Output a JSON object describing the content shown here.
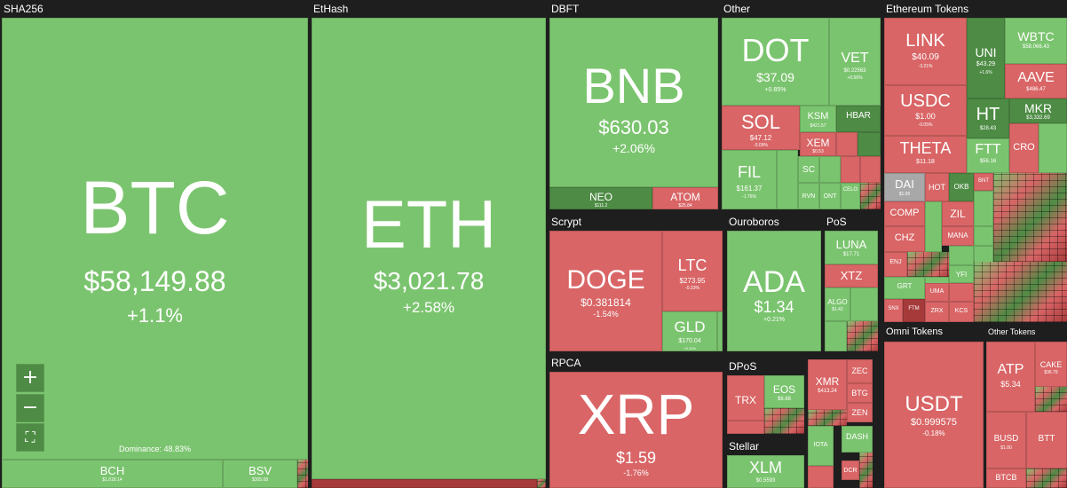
{
  "sectors": {
    "sha256": "SHA256",
    "ethash": "EtHash",
    "dbft": "DBFT",
    "other": "Other",
    "eth_tokens": "Ethereum Tokens",
    "scrypt": "Scrypt",
    "ouroboros": "Ouroboros",
    "pos": "PoS",
    "rpca": "RPCA",
    "dpos": "DPoS",
    "stellar": "Stellar",
    "omni": "Omni Tokens",
    "other_tokens": "Other Tokens"
  },
  "coins": {
    "btc": {
      "symbol": "BTC",
      "price": "$58,149.88",
      "change": "+1.1%"
    },
    "eth": {
      "symbol": "ETH",
      "price": "$3,021.78",
      "change": "+2.58%"
    },
    "bnb": {
      "symbol": "BNB",
      "price": "$630.03",
      "change": "+2.06%"
    },
    "dot": {
      "symbol": "DOT",
      "price": "$37.09",
      "change": "+0.85%"
    },
    "vet": {
      "symbol": "VET",
      "price": "$0.22563",
      "change": "+0.56%"
    },
    "sol": {
      "symbol": "SOL",
      "price": "$47.12",
      "change": "-0.09%"
    },
    "fil": {
      "symbol": "FIL",
      "price": "$161.37",
      "change": "-1.76%"
    },
    "ksm": {
      "symbol": "KSM",
      "price": "$421.57"
    },
    "hbar": {
      "symbol": "HBAR"
    },
    "xem": {
      "symbol": "XEM",
      "price": "$0.53"
    },
    "sc": {
      "symbol": "SC"
    },
    "rvn": {
      "symbol": "RVN"
    },
    "ont": {
      "symbol": "ONT"
    },
    "celo": {
      "symbol": "CELO"
    },
    "neo": {
      "symbol": "NEO",
      "price": "$111.2"
    },
    "atom": {
      "symbol": "ATOM",
      "price": "$25.84"
    },
    "doge": {
      "symbol": "DOGE",
      "price": "$0.381814",
      "change": "-1.54%"
    },
    "ltc": {
      "symbol": "LTC",
      "price": "$273.95",
      "change": "-0.33%"
    },
    "gld": {
      "symbol": "GLD",
      "price": "$170.04",
      "change": "+0.11%"
    },
    "ada": {
      "symbol": "ADA",
      "price": "$1.34",
      "change": "+0.21%"
    },
    "luna": {
      "symbol": "LUNA",
      "price": "$17.71"
    },
    "xtz": {
      "symbol": "XTZ"
    },
    "algo": {
      "symbol": "ALGO",
      "price": "$1.42"
    },
    "xrp": {
      "symbol": "XRP",
      "price": "$1.59",
      "change": "-1.76%"
    },
    "trx": {
      "symbol": "TRX"
    },
    "eos": {
      "symbol": "EOS",
      "price": "$6.68"
    },
    "xmr": {
      "symbol": "XMR",
      "price": "$413.24"
    },
    "zec": {
      "symbol": "ZEC"
    },
    "btg": {
      "symbol": "BTG"
    },
    "zen": {
      "symbol": "ZEN"
    },
    "xlm": {
      "symbol": "XLM",
      "price": "$0.5593"
    },
    "iota": {
      "symbol": "IOTA"
    },
    "dash": {
      "symbol": "DASH"
    },
    "dcr": {
      "symbol": "DCR"
    },
    "bch": {
      "symbol": "BCH",
      "price": "$1,018.14"
    },
    "bsv": {
      "symbol": "BSV",
      "price": "$305.08"
    },
    "link": {
      "symbol": "LINK",
      "price": "$40.09",
      "change": "-3.21%"
    },
    "uni": {
      "symbol": "UNI",
      "price": "$43.29",
      "change": "+1.6%"
    },
    "wbtc": {
      "symbol": "WBTC",
      "price": "$58,066.43"
    },
    "aave": {
      "symbol": "AAVE",
      "price": "$486.47"
    },
    "usdc": {
      "symbol": "USDC",
      "price": "$1.00",
      "change": "-0.05%"
    },
    "ht": {
      "symbol": "HT",
      "price": "$28.43"
    },
    "mkr": {
      "symbol": "MKR",
      "price": "$3,332.69"
    },
    "theta": {
      "symbol": "THETA",
      "price": "$11.18"
    },
    "ftt": {
      "symbol": "FTT",
      "price": "$56.16"
    },
    "cro": {
      "symbol": "CRO"
    },
    "dai": {
      "symbol": "DAI",
      "price": "$1.00"
    },
    "hot": {
      "symbol": "HOT"
    },
    "okb": {
      "symbol": "OKB"
    },
    "bnt": {
      "symbol": "BNT"
    },
    "comp": {
      "symbol": "COMP"
    },
    "zil": {
      "symbol": "ZIL"
    },
    "chz": {
      "symbol": "CHZ"
    },
    "mana": {
      "symbol": "MANA"
    },
    "enj": {
      "symbol": "ENJ"
    },
    "grt": {
      "symbol": "GRT"
    },
    "yfi": {
      "symbol": "YFI"
    },
    "uma": {
      "symbol": "UMA"
    },
    "snx": {
      "symbol": "SNX"
    },
    "ftm": {
      "symbol": "FTM"
    },
    "zrx": {
      "symbol": "ZRX"
    },
    "kcs": {
      "symbol": "KCS"
    },
    "usdt": {
      "symbol": "USDT",
      "price": "$0.999575",
      "change": "-0.18%"
    },
    "atp": {
      "symbol": "ATP",
      "price": "$5.34"
    },
    "cake": {
      "symbol": "CAKE",
      "price": "$36.79"
    },
    "busd": {
      "symbol": "BUSD",
      "price": "$1.00"
    },
    "btt": {
      "symbol": "BTT"
    },
    "btcb": {
      "symbol": "BTCB"
    }
  },
  "dominance": "Dominance: 48.83%",
  "controls": {
    "zoom_in": "+",
    "zoom_out": "−",
    "fullscreen": "⛶"
  },
  "colors": {
    "up": "#7bc46f",
    "down": "#d96566",
    "up_strong": "#4e8c45",
    "down_strong": "#a63a3b",
    "background": "#1e1e1e"
  }
}
